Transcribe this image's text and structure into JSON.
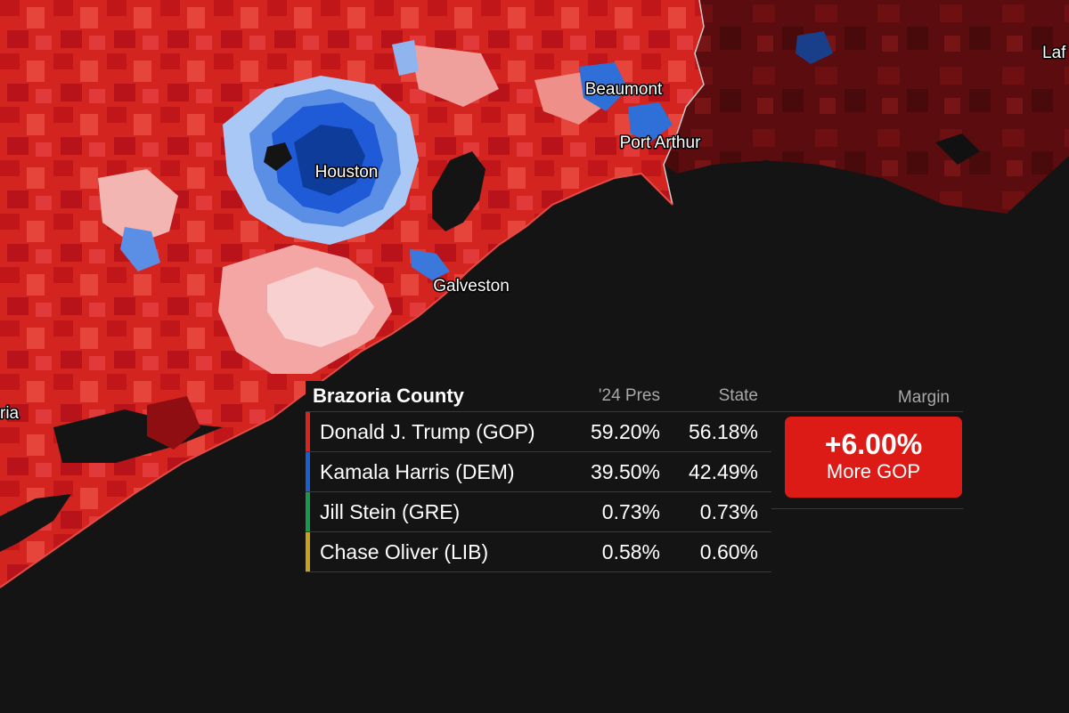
{
  "map": {
    "cities": [
      {
        "name": "Houston"
      },
      {
        "name": "Beaumont"
      },
      {
        "name": "Port Arthur"
      },
      {
        "name": "Galveston"
      }
    ],
    "edge_labels": [
      "Laf",
      "ria"
    ],
    "colors": {
      "gop_strong": "#c8161b",
      "gop_mid": "#e03b34",
      "gop_light": "#f4a0a0",
      "dem_strong": "#1f5bd6",
      "dem_light": "#a9c8f5",
      "water": "#141414",
      "louisiana_dark": "#5a0c0c"
    }
  },
  "panel": {
    "county": "Brazoria County",
    "col_pres": "'24 Pres",
    "col_state": "State",
    "col_margin": "Margin",
    "rows": [
      {
        "candidate": "Donald J. Trump (GOP)",
        "pres": "59.20%",
        "state": "56.18%",
        "color": "#d8241c"
      },
      {
        "candidate": "Kamala Harris (DEM)",
        "pres": "39.50%",
        "state": "42.49%",
        "color": "#1a5fd0"
      },
      {
        "candidate": "Jill Stein (GRE)",
        "pres": "0.73%",
        "state": "0.73%",
        "color": "#169a4e"
      },
      {
        "candidate": "Chase Oliver (LIB)",
        "pres": "0.58%",
        "state": "0.60%",
        "color": "#c8a21c"
      }
    ],
    "margin_value": "+6.00%",
    "margin_label": "More GOP"
  }
}
